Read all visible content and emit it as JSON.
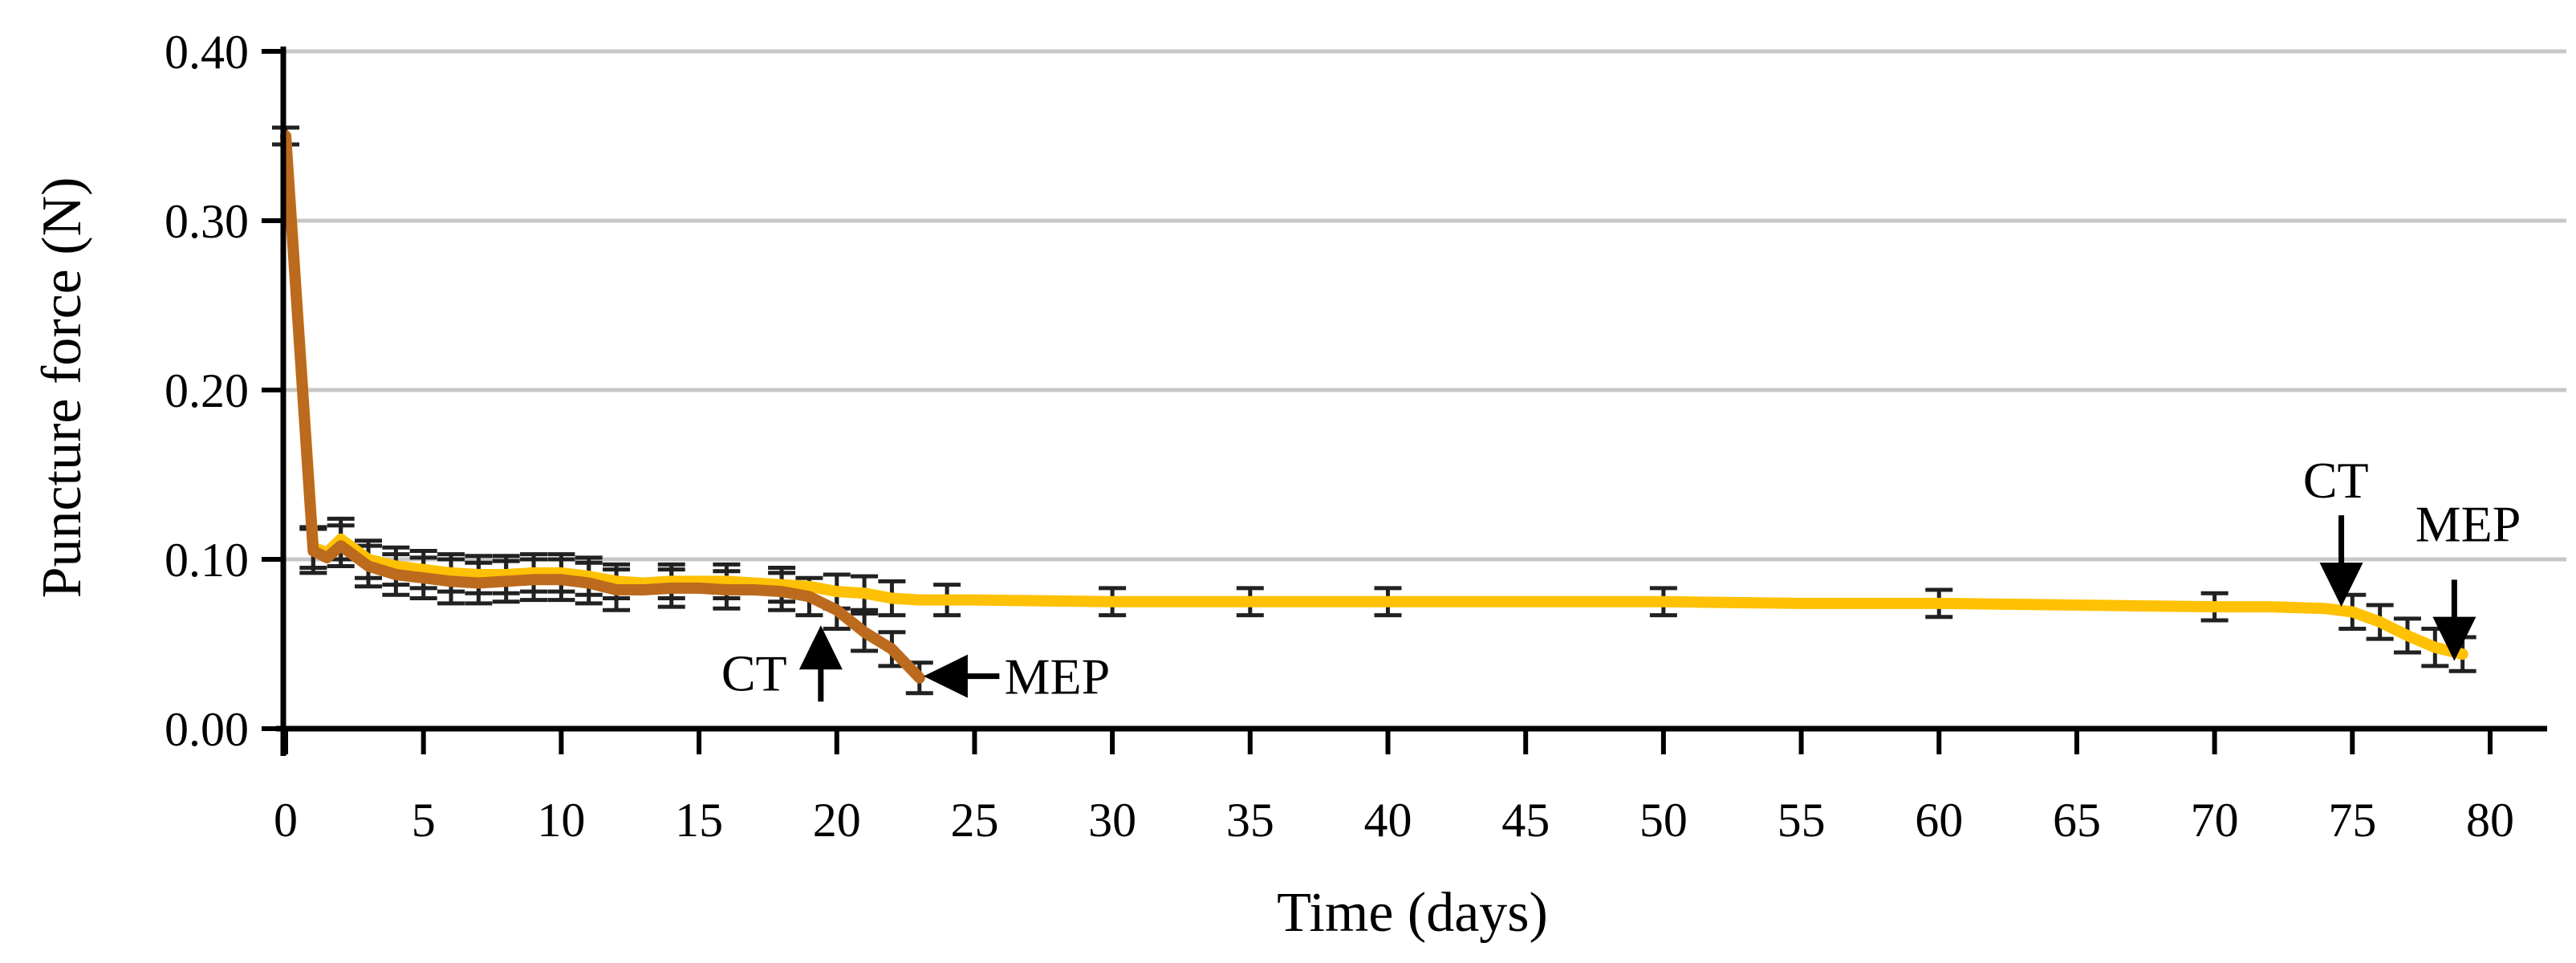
{
  "figure": {
    "background": "#FFFFFF"
  },
  "chart_data": {
    "type": "line",
    "title": "",
    "xlabel": "Time (days)",
    "ylabel": "Puncture force (N)",
    "xlim": [
      0,
      80
    ],
    "ylim": [
      0.0,
      0.4
    ],
    "grid": "horizontal-only",
    "legend": "none",
    "colors": {
      "grid": "#C7C7C7",
      "axis": "#000000",
      "error_bar": "#212121",
      "yellow_series": "#FFC103",
      "brown_series": "#BC6A1E",
      "annotation": "#000000"
    },
    "x_ticks": [
      {
        "value": 0,
        "label": "0"
      },
      {
        "value": 5,
        "label": "5"
      },
      {
        "value": 10,
        "label": "10"
      },
      {
        "value": 15,
        "label": "15"
      },
      {
        "value": 20,
        "label": "20"
      },
      {
        "value": 25,
        "label": "25"
      },
      {
        "value": 30,
        "label": "30"
      },
      {
        "value": 35,
        "label": "35"
      },
      {
        "value": 40,
        "label": "40"
      },
      {
        "value": 45,
        "label": "45"
      },
      {
        "value": 50,
        "label": "50"
      },
      {
        "value": 55,
        "label": "55"
      },
      {
        "value": 60,
        "label": "60"
      },
      {
        "value": 65,
        "label": "65"
      },
      {
        "value": 70,
        "label": "70"
      },
      {
        "value": 75,
        "label": "75"
      },
      {
        "value": 80,
        "label": "80"
      }
    ],
    "y_ticks": [
      {
        "value": 0.0,
        "label": "0.00"
      },
      {
        "value": 0.1,
        "label": "0.10"
      },
      {
        "value": 0.2,
        "label": "0.20"
      },
      {
        "value": 0.3,
        "label": "0.30"
      },
      {
        "value": 0.4,
        "label": "0.40"
      }
    ],
    "series": [
      {
        "name": "yellow",
        "color": "#FFC103",
        "points": [
          [
            0,
            0.35
          ],
          [
            1,
            0.107
          ],
          [
            1.5,
            0.104
          ],
          [
            2,
            0.112
          ],
          [
            3,
            0.1
          ],
          [
            4,
            0.096
          ],
          [
            5,
            0.094
          ],
          [
            6,
            0.092
          ],
          [
            7,
            0.091
          ],
          [
            8,
            0.091
          ],
          [
            9,
            0.092
          ],
          [
            10,
            0.092
          ],
          [
            11,
            0.09
          ],
          [
            12,
            0.087
          ],
          [
            13,
            0.086
          ],
          [
            14,
            0.087
          ],
          [
            15,
            0.087
          ],
          [
            16,
            0.087
          ],
          [
            17,
            0.086
          ],
          [
            18,
            0.085
          ],
          [
            19,
            0.084
          ],
          [
            20,
            0.081
          ],
          [
            21,
            0.08
          ],
          [
            22,
            0.077
          ],
          [
            23,
            0.076
          ],
          [
            24,
            0.076
          ],
          [
            25,
            0.076
          ],
          [
            30,
            0.075
          ],
          [
            35,
            0.075
          ],
          [
            40,
            0.075
          ],
          [
            45,
            0.075
          ],
          [
            50,
            0.075
          ],
          [
            55,
            0.074
          ],
          [
            60,
            0.074
          ],
          [
            65,
            0.073
          ],
          [
            70,
            0.072
          ],
          [
            72,
            0.072
          ],
          [
            74,
            0.071
          ],
          [
            75,
            0.069
          ],
          [
            76,
            0.063
          ],
          [
            77,
            0.055
          ],
          [
            78,
            0.048
          ],
          [
            79,
            0.044
          ]
        ],
        "error_bars": [
          [
            0,
            0.35,
            0.005
          ],
          [
            1,
            0.107,
            0.012
          ],
          [
            2,
            0.112,
            0.012
          ],
          [
            3,
            0.1,
            0.011
          ],
          [
            4,
            0.096,
            0.011
          ],
          [
            5,
            0.094,
            0.011
          ],
          [
            6,
            0.092,
            0.011
          ],
          [
            7,
            0.091,
            0.011
          ],
          [
            8,
            0.091,
            0.011
          ],
          [
            9,
            0.092,
            0.011
          ],
          [
            10,
            0.092,
            0.011
          ],
          [
            11,
            0.09,
            0.011
          ],
          [
            12,
            0.087,
            0.01
          ],
          [
            14,
            0.087,
            0.01
          ],
          [
            16,
            0.087,
            0.01
          ],
          [
            18,
            0.085,
            0.01
          ],
          [
            20,
            0.081,
            0.01
          ],
          [
            21,
            0.08,
            0.01
          ],
          [
            22,
            0.077,
            0.01
          ],
          [
            24,
            0.076,
            0.009
          ],
          [
            30,
            0.075,
            0.008
          ],
          [
            35,
            0.075,
            0.008
          ],
          [
            40,
            0.075,
            0.008
          ],
          [
            50,
            0.075,
            0.008
          ],
          [
            60,
            0.074,
            0.008
          ],
          [
            70,
            0.072,
            0.008
          ],
          [
            75,
            0.069,
            0.01
          ],
          [
            76,
            0.063,
            0.01
          ],
          [
            77,
            0.055,
            0.01
          ],
          [
            78,
            0.048,
            0.011
          ],
          [
            79,
            0.044,
            0.01
          ]
        ]
      },
      {
        "name": "brown",
        "color": "#BC6A1E",
        "points": [
          [
            0,
            0.35
          ],
          [
            1,
            0.105
          ],
          [
            1.5,
            0.101
          ],
          [
            2,
            0.108
          ],
          [
            3,
            0.096
          ],
          [
            4,
            0.091
          ],
          [
            5,
            0.089
          ],
          [
            6,
            0.087
          ],
          [
            7,
            0.086
          ],
          [
            8,
            0.087
          ],
          [
            9,
            0.088
          ],
          [
            10,
            0.088
          ],
          [
            11,
            0.086
          ],
          [
            12,
            0.082
          ],
          [
            13,
            0.082
          ],
          [
            14,
            0.083
          ],
          [
            15,
            0.083
          ],
          [
            16,
            0.082
          ],
          [
            17,
            0.082
          ],
          [
            18,
            0.081
          ],
          [
            19,
            0.078
          ],
          [
            20,
            0.07
          ],
          [
            21,
            0.057
          ],
          [
            22,
            0.047
          ],
          [
            23,
            0.03
          ]
        ],
        "error_bars": [
          [
            0,
            0.35,
            0.005
          ],
          [
            1,
            0.105,
            0.013
          ],
          [
            2,
            0.108,
            0.012
          ],
          [
            3,
            0.096,
            0.012
          ],
          [
            4,
            0.091,
            0.012
          ],
          [
            5,
            0.089,
            0.012
          ],
          [
            6,
            0.087,
            0.013
          ],
          [
            7,
            0.086,
            0.012
          ],
          [
            8,
            0.087,
            0.012
          ],
          [
            9,
            0.088,
            0.012
          ],
          [
            10,
            0.088,
            0.012
          ],
          [
            11,
            0.086,
            0.012
          ],
          [
            12,
            0.082,
            0.012
          ],
          [
            14,
            0.083,
            0.011
          ],
          [
            16,
            0.082,
            0.011
          ],
          [
            18,
            0.081,
            0.011
          ],
          [
            19,
            0.078,
            0.011
          ],
          [
            20,
            0.07,
            0.011
          ],
          [
            21,
            0.057,
            0.011
          ],
          [
            22,
            0.047,
            0.01
          ],
          [
            23,
            0.03,
            0.009
          ]
        ]
      }
    ],
    "annotations": [
      {
        "text": "CT",
        "series": "brown",
        "text_day": 17.0,
        "text_N": 0.033,
        "arrow": {
          "dir": "up",
          "day": 19.42,
          "from_N": 0.016,
          "to_N": 0.061
        }
      },
      {
        "text": "MEP",
        "series": "brown",
        "text_day": 28.0,
        "text_N": 0.031,
        "arrow": {
          "dir": "left",
          "N": 0.031,
          "from_day": 25.9,
          "to_day": 23.15
        }
      },
      {
        "text": "CT",
        "series": "yellow",
        "text_day": 74.4,
        "text_N": 0.147,
        "arrow": {
          "dir": "down",
          "day": 74.6,
          "from_N": 0.126,
          "to_N": 0.072
        }
      },
      {
        "text": "MEP",
        "series": "yellow",
        "text_day": 79.2,
        "text_N": 0.121,
        "arrow": {
          "dir": "down",
          "day": 78.7,
          "from_N": 0.088,
          "to_N": 0.04
        }
      }
    ]
  }
}
